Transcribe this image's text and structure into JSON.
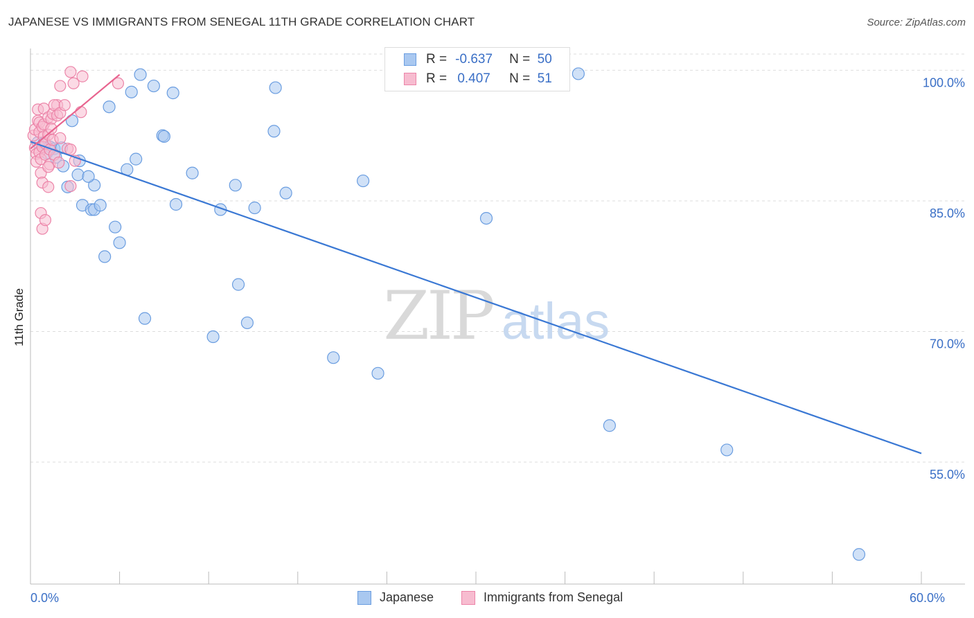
{
  "header": {
    "title": "JAPANESE VS IMMIGRANTS FROM SENEGAL 11TH GRADE CORRELATION CHART",
    "source": "Source: ZipAtlas.com"
  },
  "watermark": {
    "zip": "ZIP",
    "atlas": "atlas"
  },
  "colors": {
    "japanese_fill": "#a9c8f0",
    "japanese_stroke": "#6a9de0",
    "japanese_line": "#3a78d4",
    "senegal_fill": "#f7bcd0",
    "senegal_stroke": "#ec84a8",
    "senegal_line": "#e8648f",
    "axis_label": "#3a6fc6",
    "grid": "#dddddd"
  },
  "legend": {
    "rows": [
      {
        "r_label": "R =",
        "r_value": "-0.637",
        "n_label": "N =",
        "n_value": "50"
      },
      {
        "r_label": "R =",
        "r_value": "0.407",
        "n_label": "N =",
        "n_value": "51"
      }
    ]
  },
  "bottom_legend": {
    "items": [
      {
        "label": "Japanese"
      },
      {
        "label": "Immigrants from Senegal"
      }
    ]
  },
  "chart_data": {
    "type": "scatter",
    "title": "JAPANESE VS IMMIGRANTS FROM SENEGAL 11TH GRADE CORRELATION CHART",
    "xlabel": "",
    "ylabel": "11th Grade",
    "xlim": [
      0,
      60
    ],
    "ylim": [
      41,
      102.5
    ],
    "x_tick_labels": [
      {
        "value": 0,
        "label": "0.0%"
      },
      {
        "value": 60,
        "label": "60.0%"
      }
    ],
    "x_minor_ticks": [
      6,
      12,
      18,
      24,
      30,
      36,
      42,
      48,
      54,
      60
    ],
    "y_ticks": [
      {
        "value": 100,
        "label": "100.0%"
      },
      {
        "value": 85,
        "label": "85.0%"
      },
      {
        "value": 70,
        "label": "70.0%"
      },
      {
        "value": 55,
        "label": "55.0%"
      }
    ],
    "grid": true,
    "series": [
      {
        "name": "Japanese",
        "r": -0.637,
        "n": 50,
        "trend": {
          "x": [
            0,
            60
          ],
          "y": [
            91.8,
            56.0
          ]
        },
        "points": [
          [
            0.5,
            91.7
          ],
          [
            0.9,
            91.6
          ],
          [
            1.3,
            91.2
          ],
          [
            1.6,
            91.0
          ],
          [
            2.1,
            91.1
          ],
          [
            1.1,
            90.5
          ],
          [
            1.7,
            90.0
          ],
          [
            2.2,
            89.0
          ],
          [
            2.8,
            94.2
          ],
          [
            3.2,
            88.0
          ],
          [
            3.3,
            89.6
          ],
          [
            4.3,
            86.8
          ],
          [
            2.5,
            86.6
          ],
          [
            3.5,
            84.5
          ],
          [
            4.1,
            84.0
          ],
          [
            4.3,
            84.0
          ],
          [
            4.7,
            84.5
          ],
          [
            3.9,
            87.8
          ],
          [
            5.3,
            95.8
          ],
          [
            5.7,
            82.0
          ],
          [
            5.0,
            78.6
          ],
          [
            6.0,
            80.2
          ],
          [
            6.5,
            88.6
          ],
          [
            6.8,
            97.5
          ],
          [
            7.1,
            89.8
          ],
          [
            7.4,
            99.5
          ],
          [
            8.3,
            98.2
          ],
          [
            7.7,
            71.5
          ],
          [
            8.9,
            92.5
          ],
          [
            9.0,
            92.4
          ],
          [
            9.6,
            97.4
          ],
          [
            9.8,
            84.6
          ],
          [
            10.9,
            88.2
          ],
          [
            12.3,
            69.4
          ],
          [
            12.8,
            84.0
          ],
          [
            13.8,
            86.8
          ],
          [
            14.0,
            75.4
          ],
          [
            14.6,
            71.0
          ],
          [
            15.1,
            84.2
          ],
          [
            16.4,
            93.0
          ],
          [
            16.5,
            98.0
          ],
          [
            17.2,
            85.9
          ],
          [
            20.4,
            67.0
          ],
          [
            22.4,
            87.3
          ],
          [
            23.4,
            65.2
          ],
          [
            30.7,
            83.0
          ],
          [
            36.9,
            99.6
          ],
          [
            39.0,
            59.2
          ],
          [
            46.9,
            56.4
          ],
          [
            55.8,
            44.4
          ]
        ]
      },
      {
        "name": "Immigrants from Senegal",
        "r": 0.407,
        "n": 51,
        "trend": {
          "x": [
            0,
            6.0
          ],
          "y": [
            91.0,
            99.5
          ]
        },
        "points": [
          [
            0.2,
            92.5
          ],
          [
            0.3,
            93.2
          ],
          [
            0.3,
            91.1
          ],
          [
            0.4,
            90.4
          ],
          [
            0.4,
            89.5
          ],
          [
            0.5,
            95.5
          ],
          [
            0.5,
            94.2
          ],
          [
            0.6,
            94.0
          ],
          [
            0.6,
            92.9
          ],
          [
            0.6,
            90.6
          ],
          [
            0.7,
            89.8
          ],
          [
            0.7,
            88.2
          ],
          [
            0.8,
            93.5
          ],
          [
            0.8,
            91.2
          ],
          [
            0.8,
            87.1
          ],
          [
            0.9,
            95.6
          ],
          [
            0.9,
            93.8
          ],
          [
            0.9,
            92.4
          ],
          [
            1.0,
            91.6
          ],
          [
            1.0,
            90.3
          ],
          [
            0.7,
            83.6
          ],
          [
            0.8,
            81.8
          ],
          [
            1.0,
            82.8
          ],
          [
            1.2,
            94.6
          ],
          [
            1.2,
            92.6
          ],
          [
            1.3,
            90.9
          ],
          [
            1.3,
            89.2
          ],
          [
            1.4,
            94.4
          ],
          [
            1.4,
            93.3
          ],
          [
            1.5,
            95.0
          ],
          [
            1.5,
            92.0
          ],
          [
            1.2,
            86.6
          ],
          [
            1.6,
            90.3
          ],
          [
            1.8,
            96.0
          ],
          [
            1.9,
            89.4
          ],
          [
            1.2,
            88.9
          ],
          [
            1.6,
            96.0
          ],
          [
            1.8,
            94.8
          ],
          [
            2.0,
            92.2
          ],
          [
            2.0,
            95.1
          ],
          [
            2.3,
            96.0
          ],
          [
            2.5,
            91.0
          ],
          [
            2.0,
            98.2
          ],
          [
            2.7,
            86.7
          ],
          [
            3.4,
            95.2
          ],
          [
            2.7,
            90.9
          ],
          [
            3.0,
            89.6
          ],
          [
            2.7,
            99.8
          ],
          [
            2.9,
            98.5
          ],
          [
            3.5,
            99.3
          ],
          [
            5.9,
            98.5
          ]
        ]
      }
    ]
  }
}
